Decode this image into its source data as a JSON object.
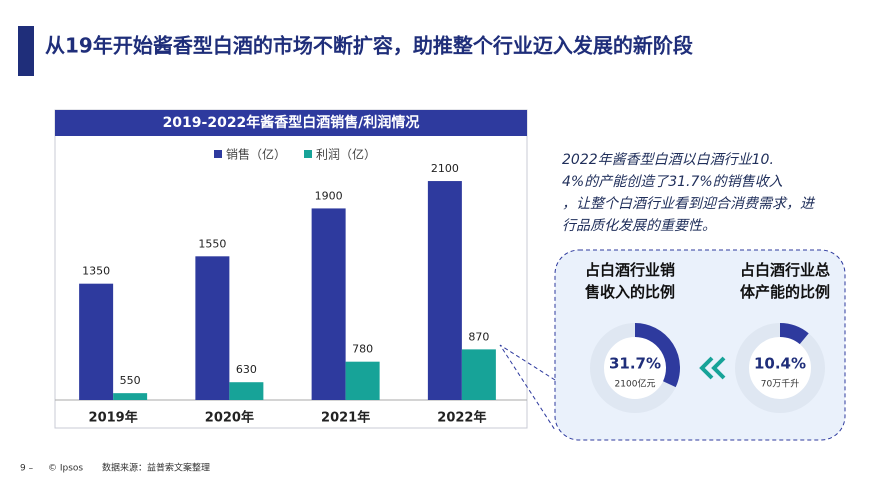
{
  "title": "从19年开始酱香型白酒的市场不断扩容，助推整个行业迈入发展的新阶段",
  "chart_data": {
    "type": "bar",
    "title": "2019-2022年酱香型白酒销售/利润情况",
    "categories": [
      "2019年",
      "2020年",
      "2021年",
      "2022年"
    ],
    "series": [
      {
        "name": "销售（亿）",
        "color": "#2e3a9e",
        "values": [
          1350,
          1550,
          1900,
          2100
        ]
      },
      {
        "name": "利润（亿）",
        "color": "#17a398",
        "values": [
          550,
          630,
          780,
          870
        ]
      }
    ],
    "ylim": [
      500,
      2400
    ]
  },
  "note": "2022年酱香型白酒以白酒行业10.4%的产能创造了31.7%的销售收入，让整个白酒行业看到迎合消费需求，进行品质化发展的重要性。",
  "callout": {
    "left": {
      "heading": "占白酒行业销售收入的比例",
      "value": "31.7%",
      "sub": "2100亿元"
    },
    "right": {
      "heading": "占白酒行业总体产能的比例",
      "value": "10.4%",
      "sub": "70万千升"
    }
  },
  "footer": {
    "page": "9 –",
    "copyright": "© Ipsos",
    "source": "数据来源：益普索文案整理"
  }
}
